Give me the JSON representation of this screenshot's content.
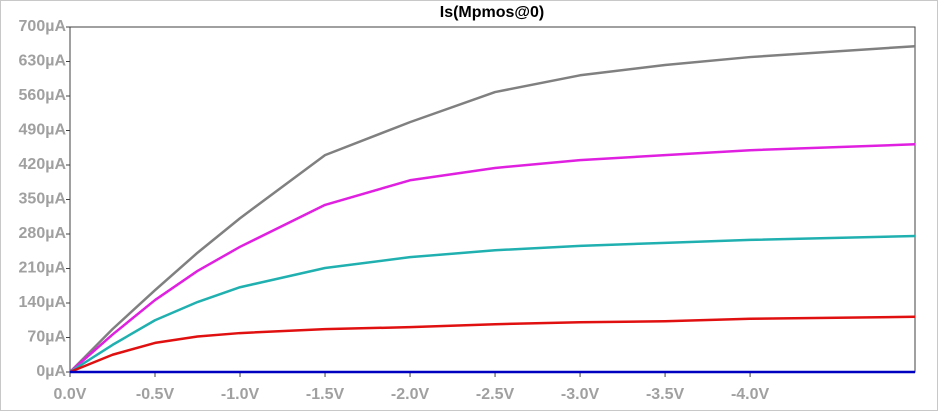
{
  "chart_data": {
    "type": "line",
    "title": "Is(Mpmos@0)",
    "x": [
      0,
      -0.25,
      -0.5,
      -0.75,
      -1.0,
      -1.5,
      -2.0,
      -2.5,
      -3.0,
      -3.5,
      -4.0,
      -4.97
    ],
    "xlim": [
      0,
      -4.97
    ],
    "xticks": [
      {
        "value": 0,
        "label": "0.0V"
      },
      {
        "value": -0.5,
        "label": "-0.5V"
      },
      {
        "value": -1.0,
        "label": "-1.0V"
      },
      {
        "value": -1.5,
        "label": "-1.5V"
      },
      {
        "value": -2.0,
        "label": "-2.0V"
      },
      {
        "value": -2.5,
        "label": "-2.5V"
      },
      {
        "value": -3.0,
        "label": "-3.0V"
      },
      {
        "value": -3.5,
        "label": "-3.5V"
      },
      {
        "value": -4.0,
        "label": "-4.0V"
      }
    ],
    "ylim": [
      0,
      700
    ],
    "yticks": [
      {
        "value": 0,
        "label": "0µA"
      },
      {
        "value": 70,
        "label": "70µA"
      },
      {
        "value": 140,
        "label": "140µA"
      },
      {
        "value": 210,
        "label": "210µA"
      },
      {
        "value": 280,
        "label": "280µA"
      },
      {
        "value": 350,
        "label": "350µA"
      },
      {
        "value": 420,
        "label": "420µA"
      },
      {
        "value": 490,
        "label": "490µA"
      },
      {
        "value": 560,
        "label": "560µA"
      },
      {
        "value": 630,
        "label": "630µA"
      },
      {
        "value": 700,
        "label": "700µA"
      }
    ],
    "series": [
      {
        "color": "#808080",
        "values": [
          0,
          87,
          166,
          242,
          312,
          440,
          507,
          568,
          602,
          623,
          639,
          661
        ]
      },
      {
        "color": "#e020e0",
        "values": [
          0,
          76,
          146,
          205,
          254,
          339,
          389,
          414,
          430,
          440,
          450,
          462
        ]
      },
      {
        "color": "#20b0b0",
        "values": [
          0,
          55,
          105,
          142,
          172,
          211,
          233,
          247,
          256,
          262,
          268,
          276
        ]
      },
      {
        "color": "#e01010",
        "values": [
          0,
          35,
          59,
          72,
          79,
          87,
          91,
          97,
          101,
          103,
          108,
          112
        ]
      },
      {
        "color": "#0000c0",
        "values": [
          0,
          0,
          0,
          0,
          0,
          0,
          0,
          0,
          0,
          0,
          0,
          0
        ]
      }
    ]
  }
}
